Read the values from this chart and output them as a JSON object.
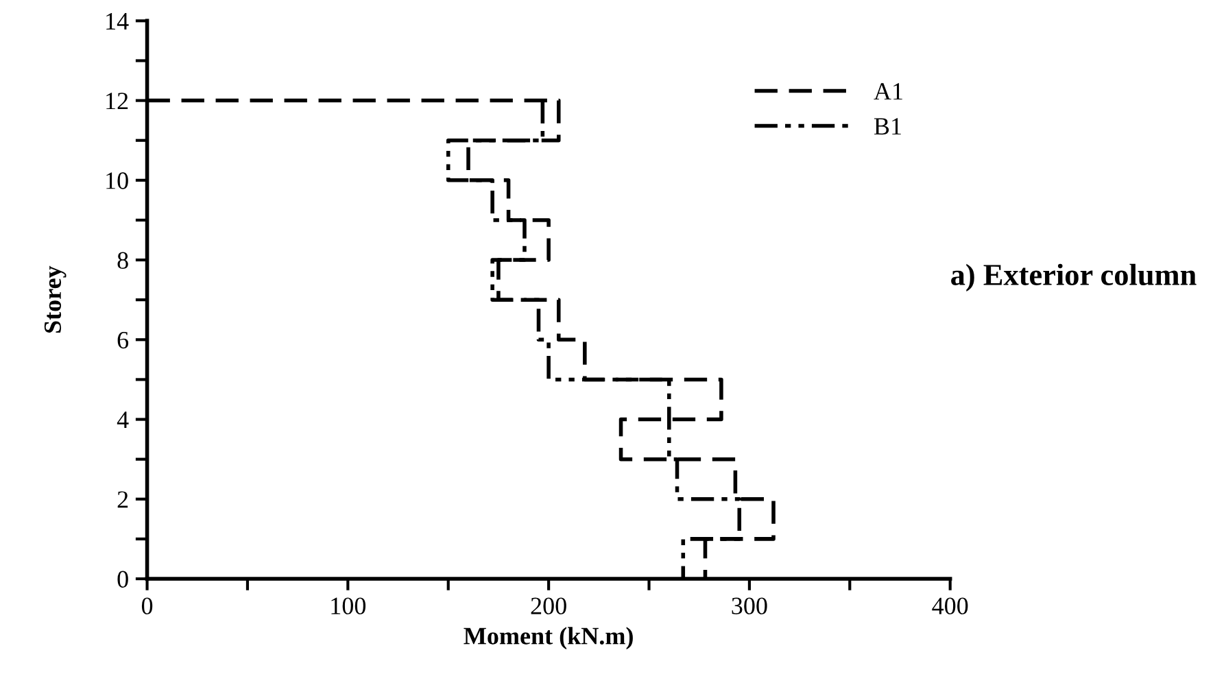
{
  "chart_data": {
    "type": "line",
    "xlabel": "Moment (kN.m)",
    "ylabel": "Storey",
    "series": [
      {
        "name": "A1",
        "color": "#000000",
        "line_style": "dashed",
        "x": [
          0,
          205,
          205,
          160,
          160,
          180,
          180,
          200,
          200,
          175,
          175,
          205,
          205,
          218,
          218,
          286,
          286,
          236,
          236,
          293,
          293,
          312,
          312,
          278,
          278
        ],
        "values": [
          12,
          12,
          11,
          11,
          10,
          10,
          9,
          9,
          8,
          8,
          7,
          7,
          6,
          6,
          5,
          5,
          4,
          4,
          3,
          3,
          2,
          2,
          1,
          1,
          0
        ]
      },
      {
        "name": "B1",
        "color": "#000000",
        "line_style": "dashdot",
        "x": [
          197,
          197,
          150,
          150,
          172,
          172,
          188,
          188,
          172,
          172,
          195,
          195,
          200,
          200,
          260,
          260,
          264,
          264,
          295,
          295,
          267,
          267
        ],
        "values": [
          12,
          11,
          11,
          10,
          10,
          9,
          9,
          8,
          8,
          7,
          7,
          6,
          6,
          5,
          5,
          3,
          3,
          2,
          2,
          1,
          1,
          0
        ]
      }
    ],
    "xlim": [
      0,
      400
    ],
    "ylim": [
      0,
      14
    ],
    "xticks": [
      0,
      {
        "value": 50,
        "label": null
      },
      100,
      {
        "value": 150,
        "label": null
      },
      200,
      {
        "value": 250,
        "label": null
      },
      300,
      {
        "value": 350,
        "label": null
      },
      400
    ],
    "yticks": [
      0,
      {
        "value": 1,
        "label": null
      },
      2,
      {
        "value": 3,
        "label": null
      },
      4,
      {
        "value": 5,
        "label": null
      },
      6,
      {
        "value": 7,
        "label": null
      },
      8,
      {
        "value": 9,
        "label": null
      },
      10,
      {
        "value": 11,
        "label": null
      },
      12,
      {
        "value": 13,
        "label": null
      },
      14
    ],
    "grid": false,
    "legend": "top right",
    "marker": "none",
    "annotations": [
      "a) Exterior column"
    ]
  }
}
